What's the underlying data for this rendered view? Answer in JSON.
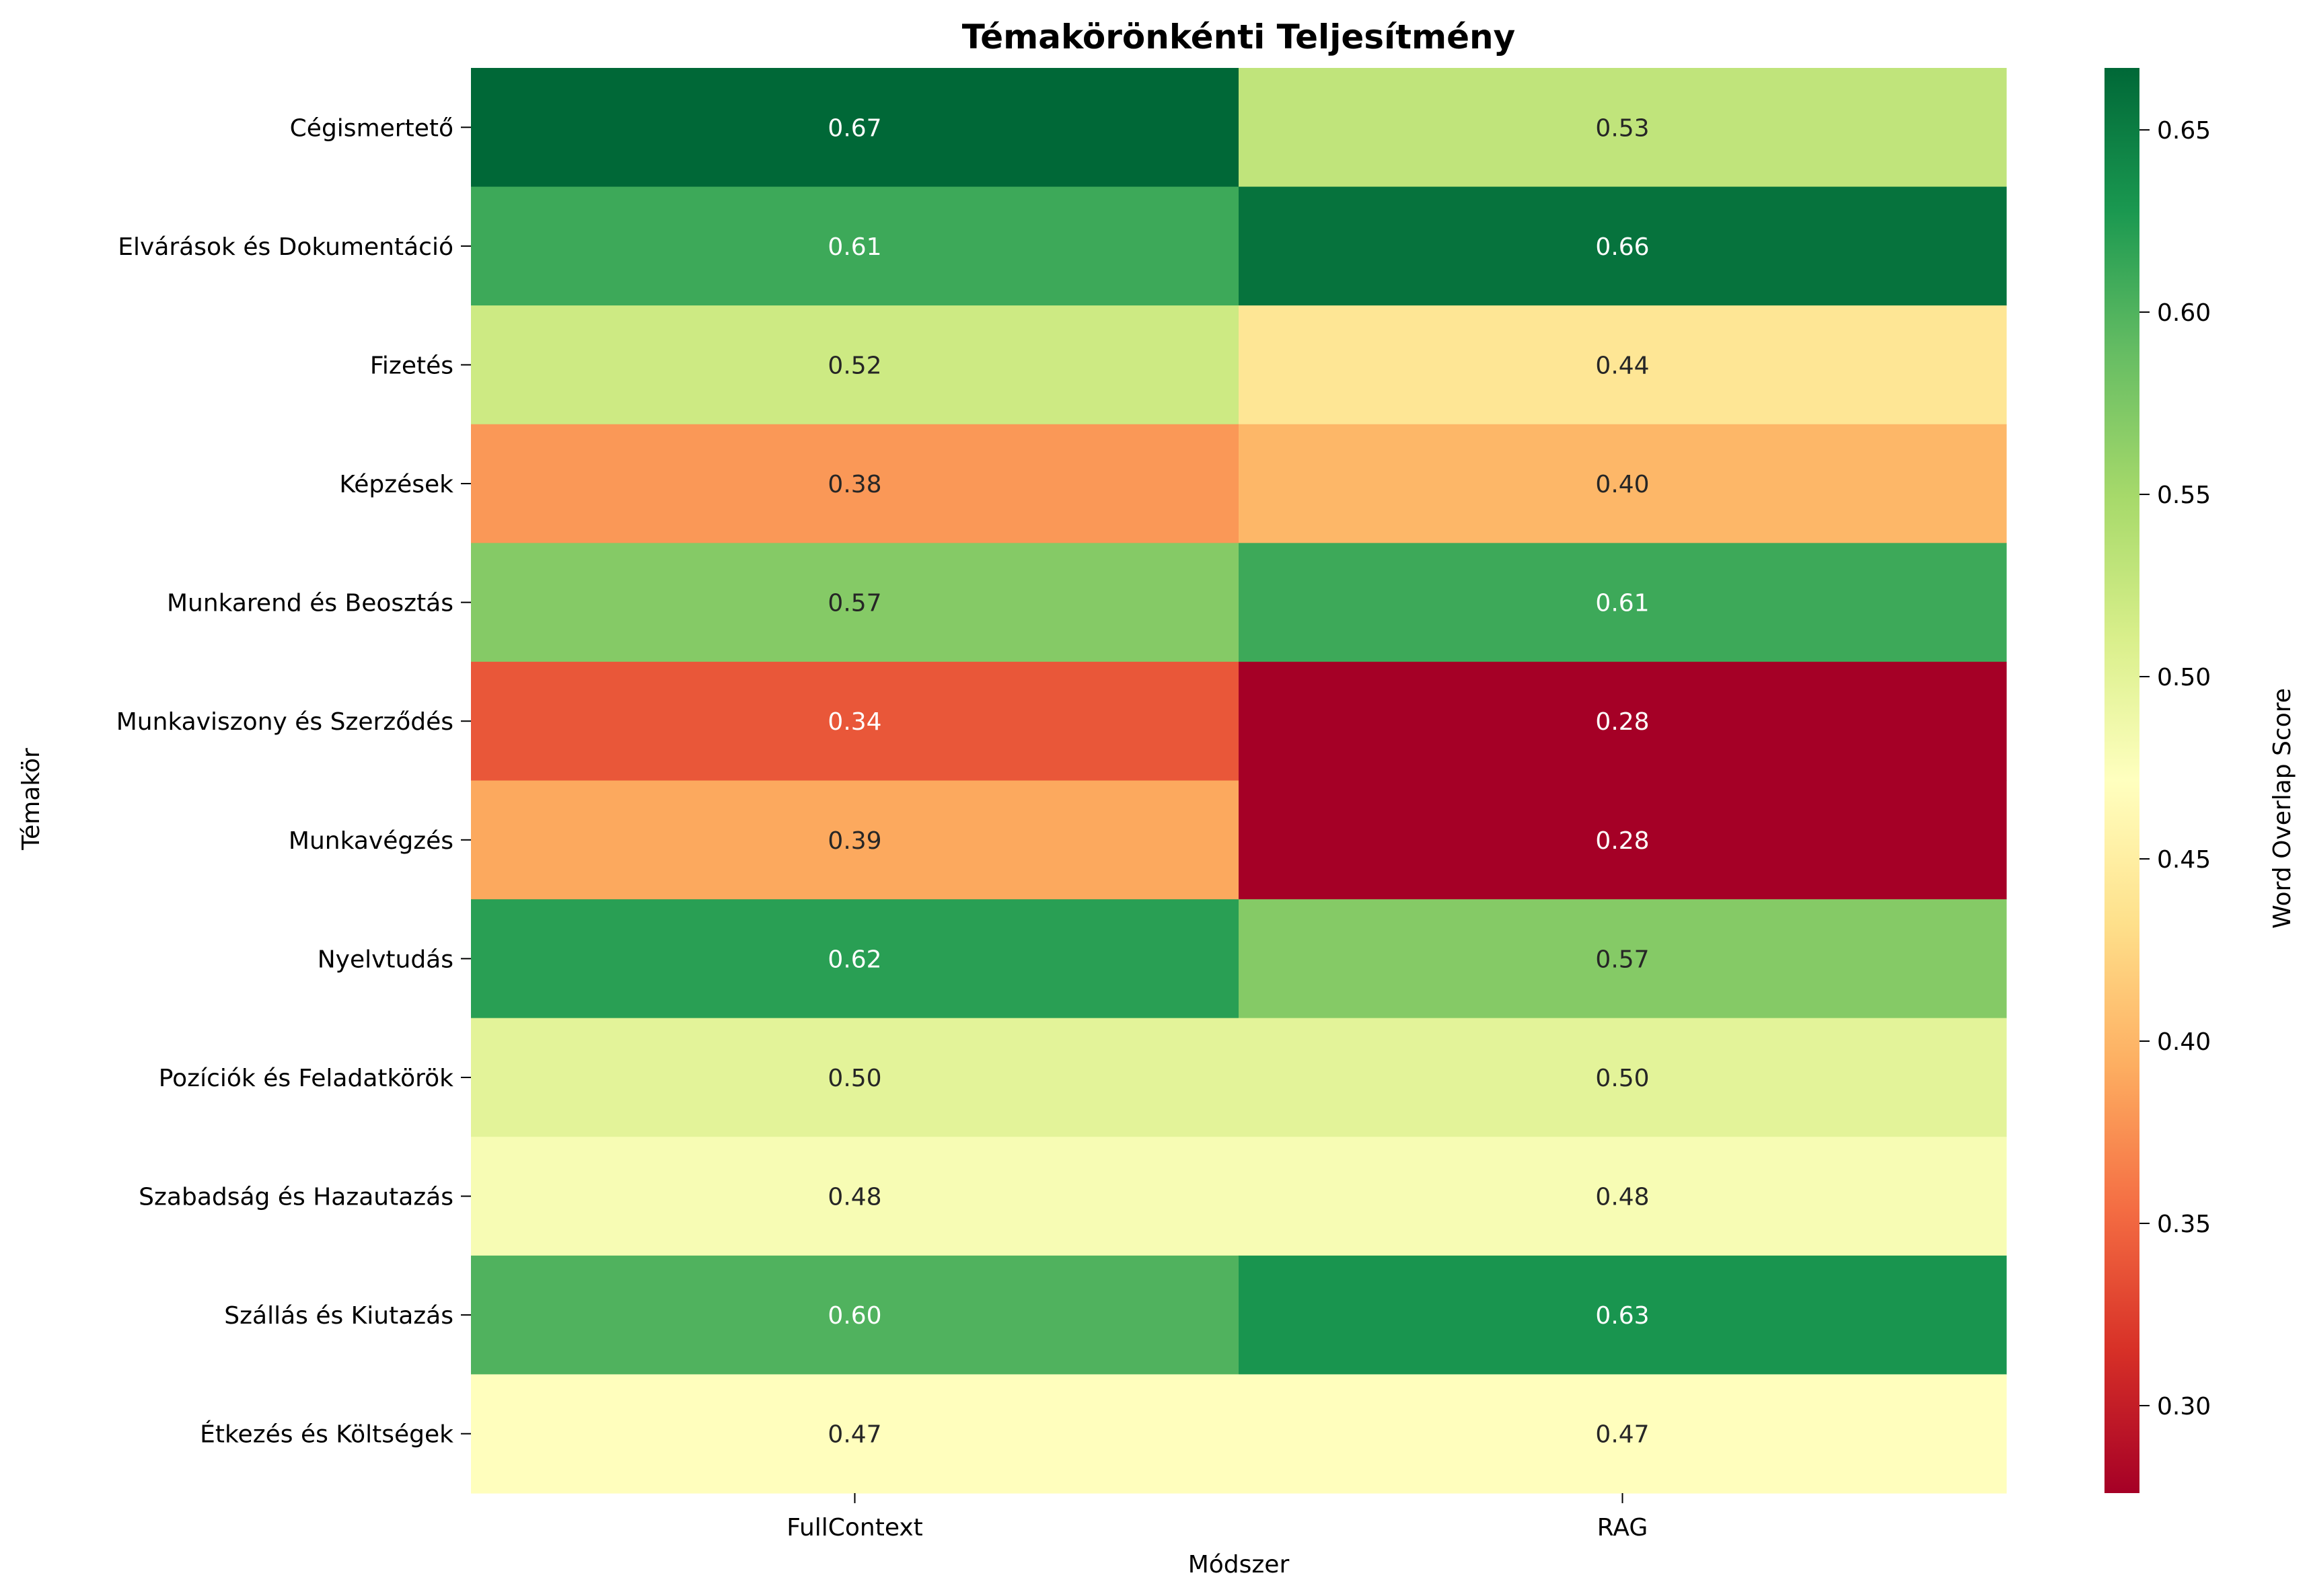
{
  "chart_data": {
    "type": "heatmap",
    "title": "Témakörönkénti Teljesítmény",
    "xlabel": "Módszer",
    "ylabel": "Témakör",
    "x_categories": [
      "FullContext",
      "RAG"
    ],
    "y_categories": [
      "Cégismertető",
      "Elvárások és Dokumentáció",
      "Fizetés",
      "Képzések",
      "Munkarend és Beosztás",
      "Munkaviszony és Szerződés",
      "Munkavégzés",
      "Nyelvtudás",
      "Pozíciók és Feladatkörök",
      "Szabadság és Hazautazás",
      "Szállás és Kiutazás",
      "Étkezés és Költségek"
    ],
    "values": [
      [
        0.667,
        0.53
      ],
      [
        0.61,
        0.658
      ],
      [
        0.52,
        0.44
      ],
      [
        0.38,
        0.4
      ],
      [
        0.57,
        0.61
      ],
      [
        0.34,
        0.276
      ],
      [
        0.39,
        0.276
      ],
      [
        0.62,
        0.57
      ],
      [
        0.5,
        0.5
      ],
      [
        0.48,
        0.48
      ],
      [
        0.6,
        0.63
      ],
      [
        0.47,
        0.47
      ]
    ],
    "value_labels": [
      [
        "0.67",
        "0.53"
      ],
      [
        "0.61",
        "0.66"
      ],
      [
        "0.52",
        "0.44"
      ],
      [
        "0.38",
        "0.40"
      ],
      [
        "0.57",
        "0.61"
      ],
      [
        "0.34",
        "0.28"
      ],
      [
        "0.39",
        "0.28"
      ],
      [
        "0.62",
        "0.57"
      ],
      [
        "0.50",
        "0.50"
      ],
      [
        "0.48",
        "0.48"
      ],
      [
        "0.60",
        "0.63"
      ],
      [
        "0.47",
        "0.47"
      ]
    ],
    "colormap": "RdYlGn",
    "colorbar": {
      "label": "Word Overlap Score",
      "vmin": 0.276,
      "vmax": 0.667,
      "ticks": [
        0.3,
        0.35,
        0.4,
        0.45,
        0.5,
        0.55,
        0.6,
        0.65
      ],
      "tick_labels": [
        "0.30",
        "0.35",
        "0.40",
        "0.45",
        "0.50",
        "0.55",
        "0.60",
        "0.65"
      ],
      "placement": "right"
    },
    "grid": false
  }
}
